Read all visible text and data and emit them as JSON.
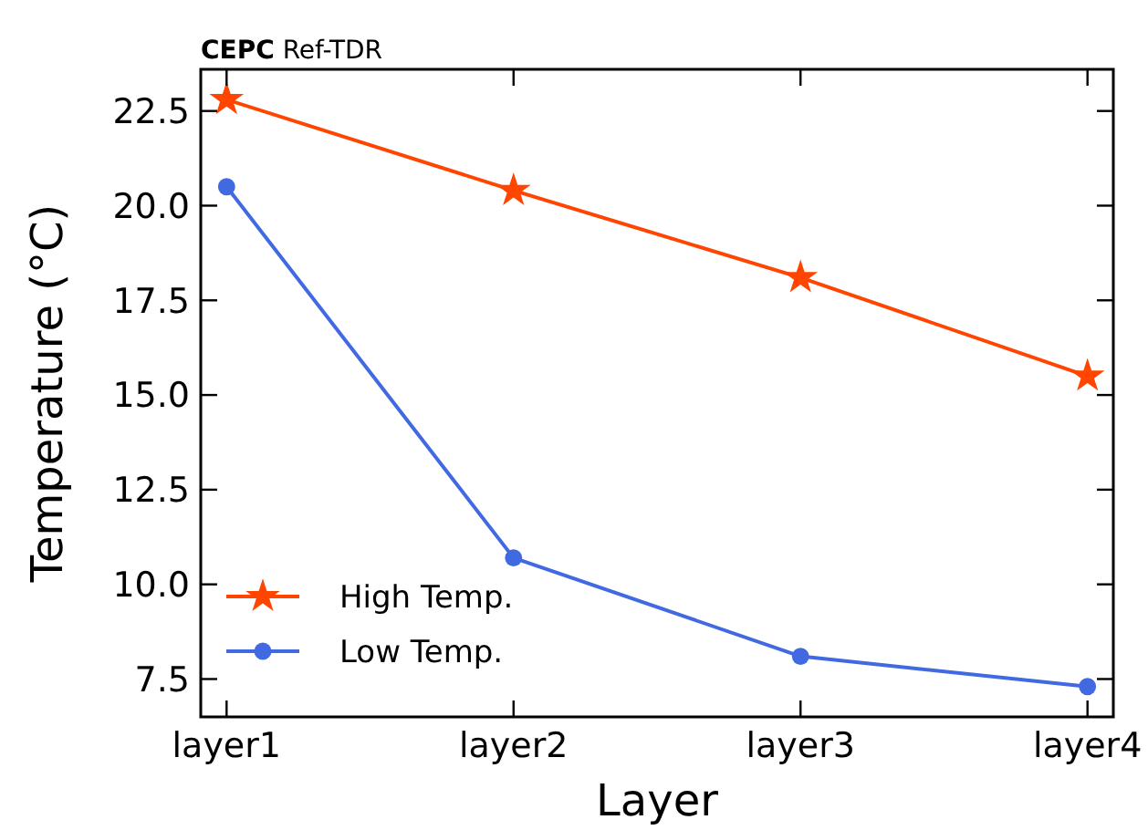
{
  "chart_data": {
    "type": "line",
    "title": "CEPC Ref-TDR",
    "xlabel": "Layer",
    "ylabel": "Temperature (°C)",
    "categories": [
      "layer1",
      "layer2",
      "layer3",
      "layer4"
    ],
    "series": [
      {
        "name": "High Temp.",
        "color": "#ff4500",
        "marker": "star",
        "values": [
          22.8,
          20.4,
          18.1,
          15.5
        ]
      },
      {
        "name": "Low Temp.",
        "color": "#4169e1",
        "marker": "circle",
        "values": [
          20.5,
          10.7,
          8.1,
          7.3
        ]
      }
    ],
    "ylim": [
      6.5,
      23.6
    ],
    "yticks": [
      {
        "value": 7.5,
        "label": "7.5"
      },
      {
        "value": 10,
        "label": "10.0"
      },
      {
        "value": 12.5,
        "label": "12.5"
      },
      {
        "value": 15,
        "label": "15.0"
      },
      {
        "value": 17.5,
        "label": "17.5"
      },
      {
        "value": 20,
        "label": "20.0"
      },
      {
        "value": 22.5,
        "label": "22.5"
      }
    ],
    "legend": "bottom left",
    "grid": false,
    "line_style": "solid"
  }
}
